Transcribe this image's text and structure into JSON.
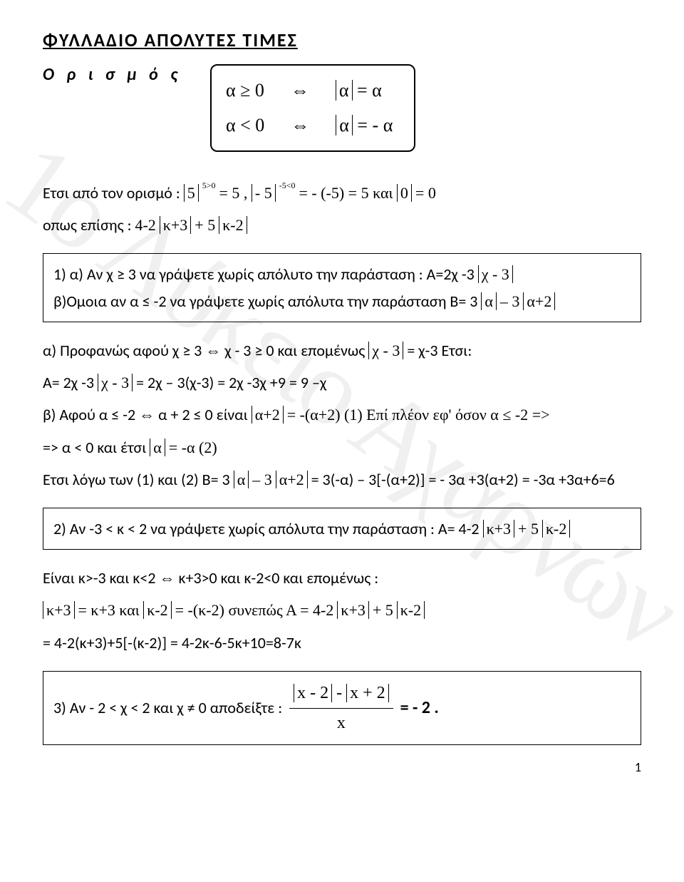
{
  "watermark": "1ο Λύκειο Αχαρνών",
  "title": "ΦΥΛΛΑΔΙΟ  ΑΠΟΛΥΤΕΣ  ΤΙΜΕΣ",
  "def_label": "Ο ρ ι σ μ ό ς",
  "def_line1_left": "α  ≥  0",
  "def_line1_right": "α",
  "def_line1_eq": "= α",
  "def_line2_left": "α < 0",
  "def_line2_right": "α",
  "def_line2_eq": "= - α",
  "p1_pre": "Ετσι από τον ορισμό :   ",
  "p1_abs5": "5",
  "p1_sup1": "5>0",
  "p1_mid1": "=   5   ,   ",
  "p1_absm5": "- 5",
  "p1_sup2": "-5<0",
  "p1_mid2": "=   - (-5) = 5   και   ",
  "p1_abs0": "0",
  "p1_mid3": "= 0",
  "p2_pre": "οπως επίσης :  ",
  "p2_expr_a": "4-2",
  "p2_abs_k3": "κ+3",
  "p2_plus5": "+ 5",
  "p2_abs_k2": "κ-2",
  "box1_a": "1) α) Αν  χ ≥ 3  να γράψετε  χωρίς  απόλυτο  την  παράσταση :  Α=2χ -3",
  "box1_a_abs": "χ - 3",
  "box1_b": "    β)Ομοια  αν  α ≤ -2  να γράψετε  χωρίς  απόλυτα  την  παράσταση  Β= 3",
  "box1_b_abs1": "α",
  "box1_b_mid": "– 3",
  "box1_b_abs2": "α+2",
  "p3": "α) Προφανώς  αφού  χ ≥ 3  ⇔  χ - 3 ≥ 0  και επομένως  ",
  "p3_abs": "χ - 3",
  "p3_after": " = χ-3   Ετσι:",
  "p4_pre": "Α= 2χ -3",
  "p4_abs": "χ - 3",
  "p4_after": " = 2χ – 3(χ-3) = 2χ -3χ +9 = 9 –χ",
  "p5_pre": "β) Αφού    α ≤ -2   ⇔    α + 2 ≤ 0    είναι  ",
  "p5_abs": "α+2",
  "p5_mid": " = -(α+2)   (1)  Επί πλέον  εφ' όσον  α ≤ -2   =>",
  "p6_pre": "=>    α < 0   και έτσι   ",
  "p6_abs": "α",
  "p6_after": " = -α    (2)",
  "p7_pre": "Ετσι  λόγω  των (1) και (2)   Β= 3",
  "p7_abs1": "α",
  "p7_mid1": "– 3",
  "p7_abs2": "α+2",
  "p7_after": " = 3(-α) – 3[-(α+2)] = - 3α +3(α+2) = -3α +3α+6=6",
  "box2_pre": "2) Αν   -3 < κ < 2   να  γράψετε  χωρίς  απόλυτα  την  παράσταση : Α= 4-2",
  "box2_abs1": "κ+3",
  "box2_mid": "+ 5",
  "box2_abs2": "κ-2",
  "p8": "Είναι   κ>-3  και  κ<2    ⇔    κ+3>0   και   κ-2<0      και  επομένως :",
  "p9_abs1": "κ+3",
  "p9_mid1": "= κ+3   και   ",
  "p9_abs2": "κ-2",
  "p9_mid2": "= -(κ-2)    συνεπώς   Α = 4-2",
  "p9_abs3": "κ+3",
  "p9_mid3": "+ 5",
  "p9_abs4": "κ-2",
  "p10": "= 4-2(κ+3)+5[-(κ-2)] = 4-2κ-6-5κ+10=8-7κ",
  "box3_pre": "3)    Αν   - 2 < χ < 2    και    χ ≠ 0   αποδείξτε :    ",
  "box3_num_abs1": "x - 2",
  "box3_num_mid": " - ",
  "box3_num_abs2": "x + 2",
  "box3_den": "x",
  "box3_after": " = - 2 .",
  "pagenum": "1"
}
